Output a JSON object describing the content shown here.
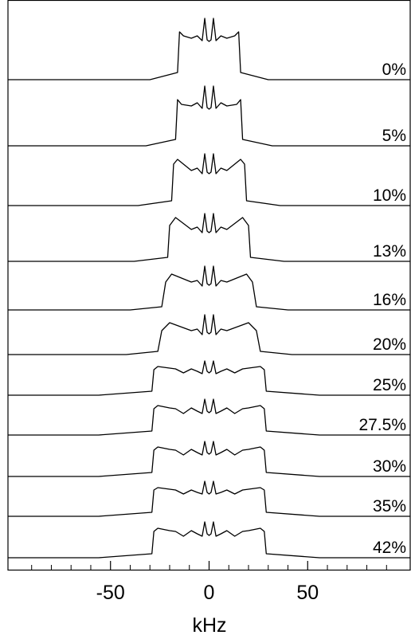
{
  "chart_data": {
    "type": "stacked-line",
    "xlabel": "kHz",
    "xlim": [
      -102,
      102
    ],
    "xticks": [
      -50,
      0,
      50
    ],
    "xminorticks": [
      -90,
      -80,
      -70,
      -60,
      -40,
      -30,
      -20,
      -10,
      10,
      20,
      30,
      40,
      60,
      70,
      80,
      90
    ],
    "color": "#000000",
    "series": [
      {
        "name": "0%",
        "x": [
          -102,
          -30,
          -16,
          -15,
          -13,
          -9,
          -6,
          -3.5,
          -2.2,
          -1,
          0,
          1,
          2.2,
          3.5,
          6,
          9,
          13,
          15,
          16,
          30,
          102
        ],
        "values": [
          0,
          0,
          9,
          60,
          55,
          52,
          55,
          49,
          77,
          50,
          48,
          50,
          77,
          49,
          55,
          52,
          55,
          60,
          9,
          0,
          0
        ]
      },
      {
        "name": "5%",
        "x": [
          -102,
          -32,
          -17,
          -16,
          -14,
          -9,
          -6,
          -3.5,
          -2.2,
          -1,
          0,
          1,
          2.2,
          3.5,
          6,
          9,
          14,
          16,
          17,
          32,
          102
        ],
        "values": [
          0,
          0,
          8,
          58,
          52,
          50,
          54,
          47,
          75,
          48,
          46,
          48,
          75,
          47,
          54,
          50,
          52,
          58,
          8,
          0,
          0
        ]
      },
      {
        "name": "10%",
        "x": [
          -102,
          -36,
          -19,
          -18,
          -16,
          -9,
          -6,
          -3.5,
          -2.2,
          -1,
          0,
          1,
          2.2,
          3.5,
          6,
          9,
          16,
          18,
          19,
          36,
          102
        ],
        "values": [
          0,
          0,
          6,
          52,
          58,
          44,
          47,
          40,
          65,
          42,
          40,
          42,
          65,
          40,
          47,
          44,
          58,
          52,
          6,
          0,
          0
        ]
      },
      {
        "name": "13%",
        "x": [
          -102,
          -38,
          -21,
          -20,
          -17,
          -9,
          -6,
          -3.5,
          -2.2,
          -1,
          0,
          1,
          2.2,
          3.5,
          6,
          9,
          17,
          20,
          21,
          38,
          102
        ],
        "values": [
          0,
          0,
          5,
          45,
          55,
          40,
          43,
          36,
          60,
          38,
          36,
          38,
          60,
          36,
          43,
          40,
          55,
          45,
          5,
          0,
          0
        ]
      },
      {
        "name": "16%",
        "x": [
          -102,
          -40,
          -24,
          -22,
          -19,
          -9,
          -6,
          -3.5,
          -2.2,
          -1,
          0,
          1,
          2.2,
          3.5,
          6,
          9,
          19,
          22,
          24,
          40,
          102
        ],
        "values": [
          0,
          0,
          4,
          35,
          45,
          35,
          37,
          30,
          55,
          33,
          31,
          33,
          55,
          30,
          37,
          35,
          45,
          35,
          4,
          0,
          0
        ]
      },
      {
        "name": "20%",
        "x": [
          -102,
          -42,
          -26,
          -24,
          -20,
          -9,
          -6,
          -3.5,
          -2.2,
          -1,
          0,
          1,
          2.2,
          3.5,
          6,
          9,
          20,
          24,
          26,
          42,
          102
        ],
        "values": [
          0,
          0,
          4,
          30,
          40,
          30,
          32,
          25,
          50,
          28,
          26,
          28,
          50,
          25,
          32,
          30,
          40,
          30,
          4,
          0,
          0
        ]
      },
      {
        "name": "25%",
        "x": [
          -102,
          -56,
          -29,
          -28,
          -26,
          -20,
          -17,
          -13,
          -9,
          -6,
          -3.5,
          -2.2,
          -1,
          0,
          1,
          2.2,
          3.5,
          6,
          9,
          13,
          17,
          20,
          26,
          28,
          29,
          56,
          102
        ],
        "values": [
          0,
          0,
          5,
          32,
          36,
          34,
          33,
          28,
          33,
          30,
          27,
          43,
          30,
          28,
          30,
          43,
          27,
          30,
          33,
          28,
          33,
          34,
          36,
          32,
          5,
          0,
          0
        ]
      },
      {
        "name": "27.5%",
        "x": [
          -102,
          -56,
          -29,
          -28,
          -26,
          -20,
          -17,
          -13,
          -9,
          -6,
          -3.5,
          -2.2,
          -1,
          0,
          1,
          2.2,
          3.5,
          6,
          9,
          13,
          17,
          20,
          26,
          28,
          29,
          56,
          102
        ],
        "values": [
          0,
          0,
          5,
          33,
          37,
          34,
          33,
          27,
          34,
          30,
          27,
          45,
          30,
          28,
          30,
          45,
          27,
          30,
          34,
          27,
          33,
          34,
          37,
          33,
          5,
          0,
          0
        ]
      },
      {
        "name": "30%",
        "x": [
          -102,
          -56,
          -29,
          -28,
          -26,
          -20,
          -17,
          -13,
          -9,
          -6,
          -3.5,
          -2.2,
          -1,
          0,
          1,
          2.2,
          3.5,
          6,
          9,
          13,
          17,
          20,
          26,
          28,
          29,
          56,
          102
        ],
        "values": [
          0,
          0,
          5,
          33,
          37,
          34,
          33,
          27,
          34,
          30,
          27,
          44,
          30,
          28,
          30,
          44,
          27,
          30,
          34,
          27,
          33,
          34,
          37,
          33,
          5,
          0,
          0
        ]
      },
      {
        "name": "35%",
        "x": [
          -102,
          -56,
          -29,
          -28,
          -26,
          -20,
          -17,
          -13,
          -9,
          -6,
          -3.5,
          -2.2,
          -1,
          0,
          1,
          2.2,
          3.5,
          6,
          9,
          13,
          17,
          20,
          26,
          28,
          29,
          56,
          102
        ],
        "values": [
          0,
          0,
          5,
          33,
          36,
          34,
          33,
          28,
          33,
          30,
          28,
          44,
          30,
          28,
          30,
          44,
          28,
          30,
          33,
          28,
          33,
          34,
          36,
          33,
          5,
          0,
          0
        ]
      },
      {
        "name": "42%",
        "x": [
          -102,
          -56,
          -29,
          -28,
          -26,
          -20,
          -17,
          -13,
          -9,
          -6,
          -3.5,
          -2.2,
          -1,
          0,
          1,
          2.2,
          3.5,
          6,
          9,
          13,
          17,
          20,
          26,
          28,
          29,
          56,
          102
        ],
        "values": [
          0,
          0,
          5,
          33,
          37,
          34,
          33,
          27,
          34,
          30,
          27,
          45,
          30,
          28,
          30,
          45,
          27,
          30,
          34,
          27,
          33,
          34,
          37,
          33,
          5,
          0,
          0
        ]
      }
    ]
  }
}
